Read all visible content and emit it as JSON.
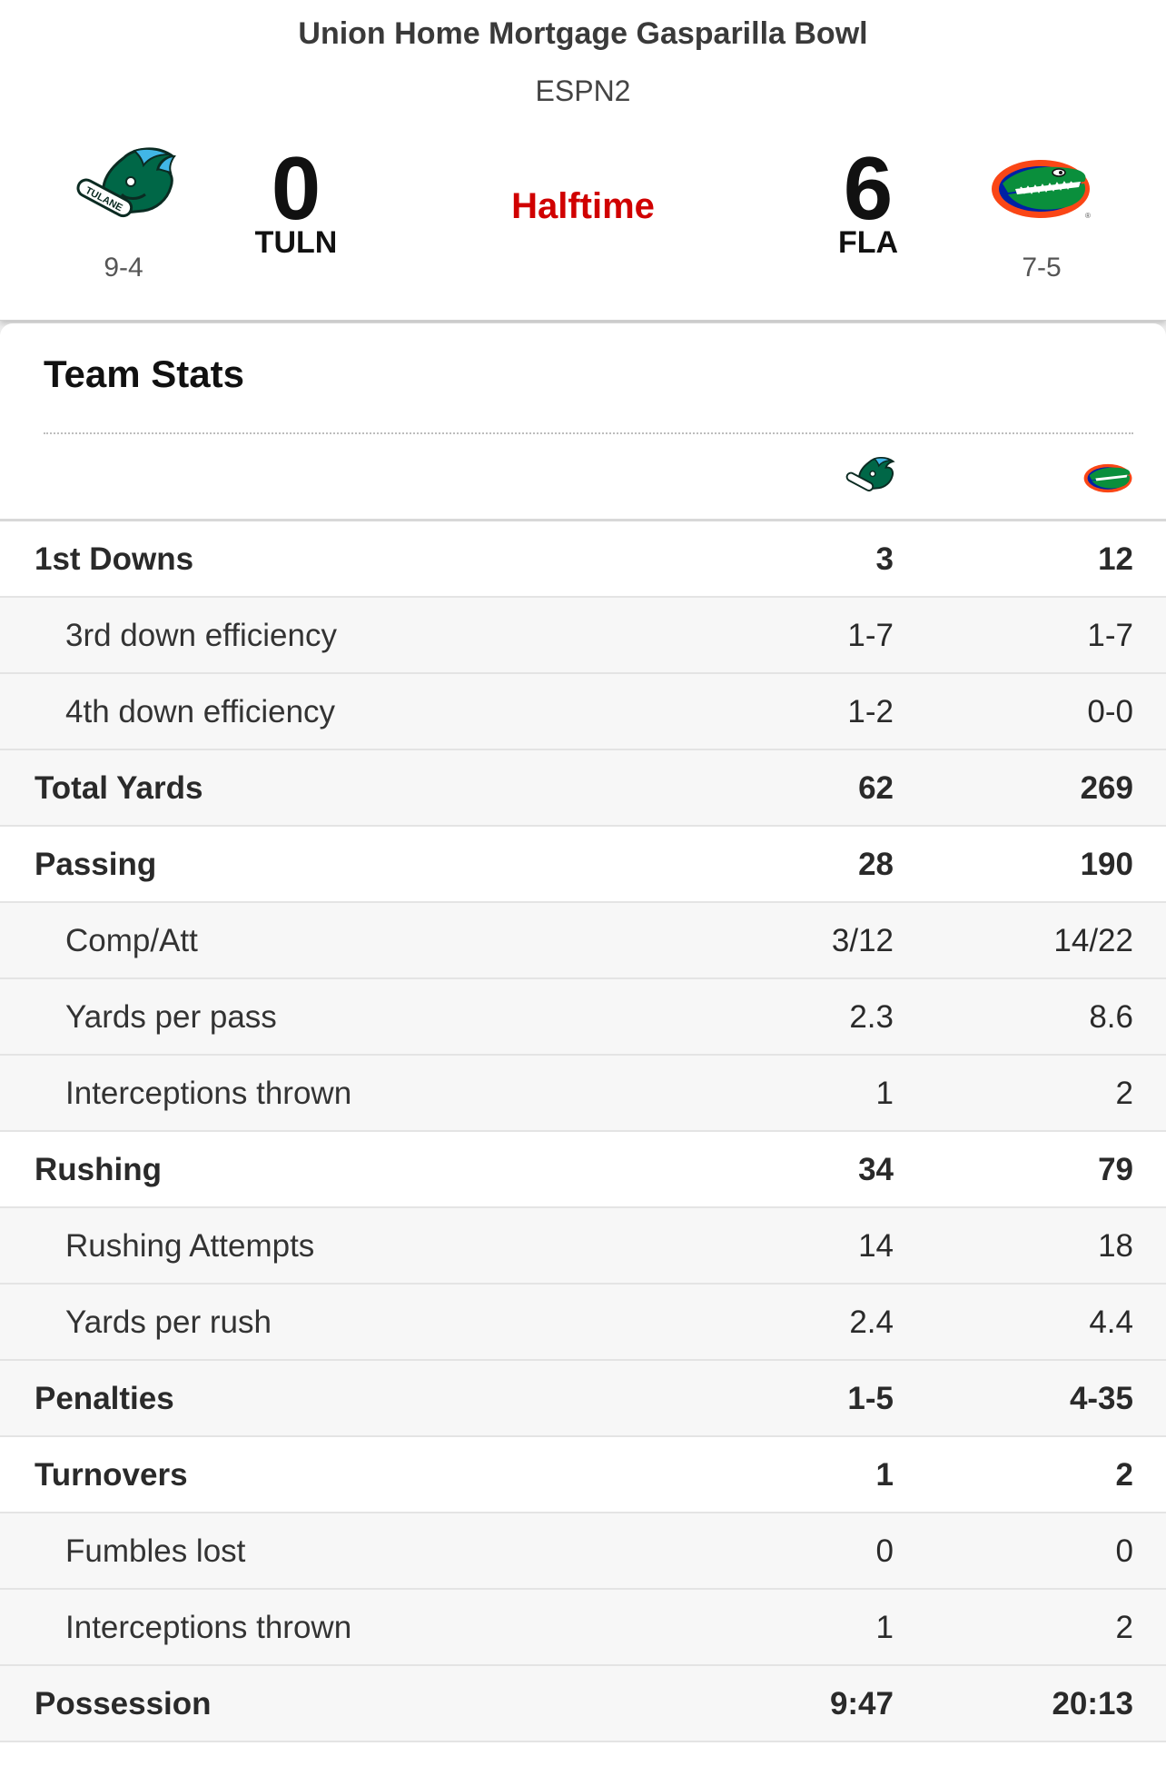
{
  "game": {
    "title": "Union Home Mortgage Gasparilla Bowl",
    "network": "ESPN2",
    "status": "Halftime",
    "status_color": "#d00000"
  },
  "away": {
    "abbr": "TULN",
    "score": "0",
    "record": "9-4",
    "logo_icon": "tulane-green-wave-logo",
    "logo_text": "TULANE",
    "color": "#006747"
  },
  "home": {
    "abbr": "FLA",
    "score": "6",
    "record": "7-5",
    "logo_icon": "florida-gators-logo",
    "color": "#fa4616",
    "color_secondary": "#0021a5"
  },
  "stats": {
    "title": "Team Stats",
    "rows": [
      {
        "label": "1st Downs",
        "away": "3",
        "home": "12",
        "level": "major"
      },
      {
        "label": "3rd down efficiency",
        "away": "1-7",
        "home": "1-7",
        "level": "minor"
      },
      {
        "label": "4th down efficiency",
        "away": "1-2",
        "home": "0-0",
        "level": "minor"
      },
      {
        "label": "Total Yards",
        "away": "62",
        "home": "269",
        "level": "major"
      },
      {
        "label": "Passing",
        "away": "28",
        "home": "190",
        "level": "major"
      },
      {
        "label": "Comp/Att",
        "away": "3/12",
        "home": "14/22",
        "level": "minor"
      },
      {
        "label": "Yards per pass",
        "away": "2.3",
        "home": "8.6",
        "level": "minor"
      },
      {
        "label": "Interceptions thrown",
        "away": "1",
        "home": "2",
        "level": "minor"
      },
      {
        "label": "Rushing",
        "away": "34",
        "home": "79",
        "level": "major"
      },
      {
        "label": "Rushing Attempts",
        "away": "14",
        "home": "18",
        "level": "minor"
      },
      {
        "label": "Yards per rush",
        "away": "2.4",
        "home": "4.4",
        "level": "minor"
      },
      {
        "label": "Penalties",
        "away": "1-5",
        "home": "4-35",
        "level": "major"
      },
      {
        "label": "Turnovers",
        "away": "1",
        "home": "2",
        "level": "major"
      },
      {
        "label": "Fumbles lost",
        "away": "0",
        "home": "0",
        "level": "minor"
      },
      {
        "label": "Interceptions thrown",
        "away": "1",
        "home": "2",
        "level": "minor"
      },
      {
        "label": "Possession",
        "away": "9:47",
        "home": "20:13",
        "level": "major"
      }
    ]
  }
}
